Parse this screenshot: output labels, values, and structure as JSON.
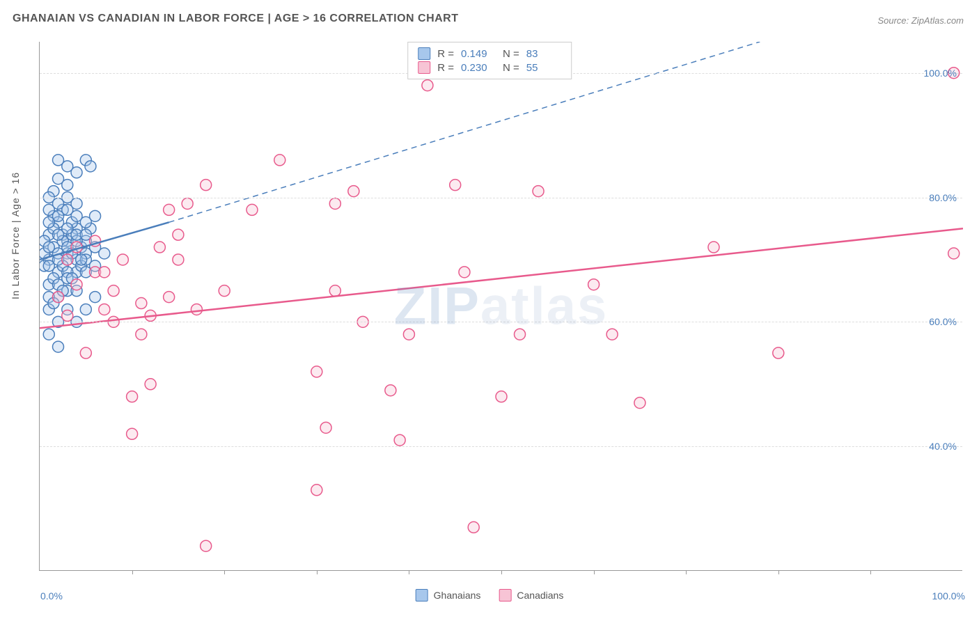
{
  "header": {
    "title": "GHANAIAN VS CANADIAN IN LABOR FORCE | AGE > 16 CORRELATION CHART",
    "source": "Source: ZipAtlas.com"
  },
  "chart": {
    "type": "scatter",
    "ylabel": "In Labor Force | Age > 16",
    "watermark": "ZIPatlas",
    "watermark_zip": "ZIP",
    "watermark_rest": "atlas",
    "xlim": [
      0,
      100
    ],
    "ylim": [
      20,
      105
    ],
    "x_min_label": "0.0%",
    "x_max_label": "100.0%",
    "xticks": [
      10,
      20,
      30,
      40,
      50,
      60,
      70,
      80,
      90
    ],
    "ygrid": [
      40,
      60,
      80,
      100
    ],
    "ytick_labels": [
      "40.0%",
      "60.0%",
      "80.0%",
      "100.0%"
    ],
    "background_color": "#ffffff",
    "grid_color": "#dddddd",
    "axis_color": "#999999",
    "tick_label_color": "#4a7ebb",
    "title_fontsize": 16,
    "label_fontsize": 14,
    "marker_radius": 8,
    "marker_stroke_width": 1.5,
    "marker_fill_opacity": 0.35,
    "series": [
      {
        "name": "Ghanaians",
        "color_stroke": "#4a7ebb",
        "color_fill": "#a7c7ec",
        "R_label": "R =",
        "R": "0.149",
        "N_label": "N =",
        "N": "83",
        "trend_solid": {
          "x1": 0,
          "y1": 70,
          "x2": 14,
          "y2": 76
        },
        "trend_dashed": {
          "x1": 14,
          "y1": 76,
          "x2": 78,
          "y2": 105
        },
        "trend_width": 2.5,
        "points": [
          [
            1,
            70
          ],
          [
            1.5,
            72
          ],
          [
            2,
            68
          ],
          [
            2.5,
            74
          ],
          [
            3,
            71
          ],
          [
            1,
            66
          ],
          [
            2,
            64
          ],
          [
            3,
            73
          ],
          [
            4,
            75
          ],
          [
            1.5,
            77
          ],
          [
            2.5,
            78
          ],
          [
            3.5,
            76
          ],
          [
            4.5,
            72
          ],
          [
            1,
            62
          ],
          [
            2,
            60
          ],
          [
            3,
            65
          ],
          [
            0.5,
            69
          ],
          [
            1,
            74
          ],
          [
            2,
            76
          ],
          [
            3,
            70
          ],
          [
            4,
            68
          ],
          [
            5,
            71
          ],
          [
            1.5,
            81
          ],
          [
            2,
            83
          ],
          [
            3,
            82
          ],
          [
            2,
            86
          ],
          [
            3,
            85
          ],
          [
            4,
            84
          ],
          [
            5,
            86
          ],
          [
            5.5,
            85
          ],
          [
            1,
            58
          ],
          [
            2,
            56
          ],
          [
            3,
            62
          ],
          [
            4,
            60
          ],
          [
            0.5,
            73
          ],
          [
            1.5,
            67
          ],
          [
            2.5,
            69
          ],
          [
            3.5,
            74
          ],
          [
            1,
            80
          ],
          [
            2,
            79
          ],
          [
            3,
            78
          ],
          [
            4,
            77
          ],
          [
            1,
            64
          ],
          [
            2,
            66
          ],
          [
            3,
            68
          ],
          [
            4,
            70
          ],
          [
            5,
            73
          ],
          [
            5.5,
            75
          ],
          [
            6,
            77
          ],
          [
            1.5,
            75
          ],
          [
            2.5,
            73
          ],
          [
            3.5,
            71
          ],
          [
            4.5,
            69
          ],
          [
            0.5,
            71
          ],
          [
            1,
            76
          ],
          [
            2,
            74
          ],
          [
            3,
            67
          ],
          [
            4,
            65
          ],
          [
            5,
            68
          ],
          [
            1,
            72
          ],
          [
            2,
            71
          ],
          [
            3,
            75
          ],
          [
            4,
            73
          ],
          [
            5,
            70
          ],
          [
            6,
            72
          ],
          [
            1,
            69
          ],
          [
            2,
            70
          ],
          [
            3,
            72
          ],
          [
            4,
            74
          ],
          [
            5,
            76
          ],
          [
            1.5,
            63
          ],
          [
            2.5,
            65
          ],
          [
            3.5,
            67
          ],
          [
            4.5,
            70
          ],
          [
            1,
            78
          ],
          [
            2,
            77
          ],
          [
            3,
            80
          ],
          [
            4,
            79
          ],
          [
            5,
            74
          ],
          [
            6,
            69
          ],
          [
            7,
            71
          ],
          [
            5,
            62
          ],
          [
            6,
            64
          ]
        ]
      },
      {
        "name": "Canadians",
        "color_stroke": "#e85a8c",
        "color_fill": "#f7c4d5",
        "R_label": "R =",
        "R": "0.230",
        "N_label": "N =",
        "N": "55",
        "trend_solid": {
          "x1": 0,
          "y1": 59,
          "x2": 100,
          "y2": 75
        },
        "trend_dashed": null,
        "trend_width": 2.5,
        "points": [
          [
            2,
            64
          ],
          [
            3,
            61
          ],
          [
            4,
            66
          ],
          [
            5,
            55
          ],
          [
            6,
            68
          ],
          [
            7,
            62
          ],
          [
            8,
            60
          ],
          [
            9,
            70
          ],
          [
            10,
            48
          ],
          [
            11,
            63
          ],
          [
            12,
            61
          ],
          [
            13,
            72
          ],
          [
            14,
            64
          ],
          [
            15,
            70
          ],
          [
            16,
            79
          ],
          [
            17,
            62
          ],
          [
            18,
            82
          ],
          [
            10,
            42
          ],
          [
            12,
            50
          ],
          [
            18,
            24
          ],
          [
            20,
            65
          ],
          [
            23,
            78
          ],
          [
            26,
            86
          ],
          [
            30,
            33
          ],
          [
            30,
            52
          ],
          [
            31,
            43
          ],
          [
            32,
            79
          ],
          [
            34,
            81
          ],
          [
            35,
            60
          ],
          [
            38,
            49
          ],
          [
            39,
            41
          ],
          [
            40,
            58
          ],
          [
            42,
            98
          ],
          [
            45,
            82
          ],
          [
            46,
            68
          ],
          [
            47,
            27
          ],
          [
            50,
            48
          ],
          [
            52,
            58
          ],
          [
            54,
            81
          ],
          [
            60,
            66
          ],
          [
            62,
            58
          ],
          [
            65,
            47
          ],
          [
            73,
            72
          ],
          [
            80,
            55
          ],
          [
            99,
            71
          ],
          [
            99,
            100
          ],
          [
            3,
            70
          ],
          [
            4,
            72
          ],
          [
            14,
            78
          ],
          [
            8,
            65
          ],
          [
            11,
            58
          ],
          [
            6,
            73
          ],
          [
            7,
            68
          ],
          [
            15,
            74
          ],
          [
            32,
            65
          ]
        ]
      }
    ],
    "legend_bottom": [
      {
        "label": "Ghanaians",
        "fill": "#a7c7ec",
        "stroke": "#4a7ebb"
      },
      {
        "label": "Canadians",
        "fill": "#f7c4d5",
        "stroke": "#e85a8c"
      }
    ]
  }
}
